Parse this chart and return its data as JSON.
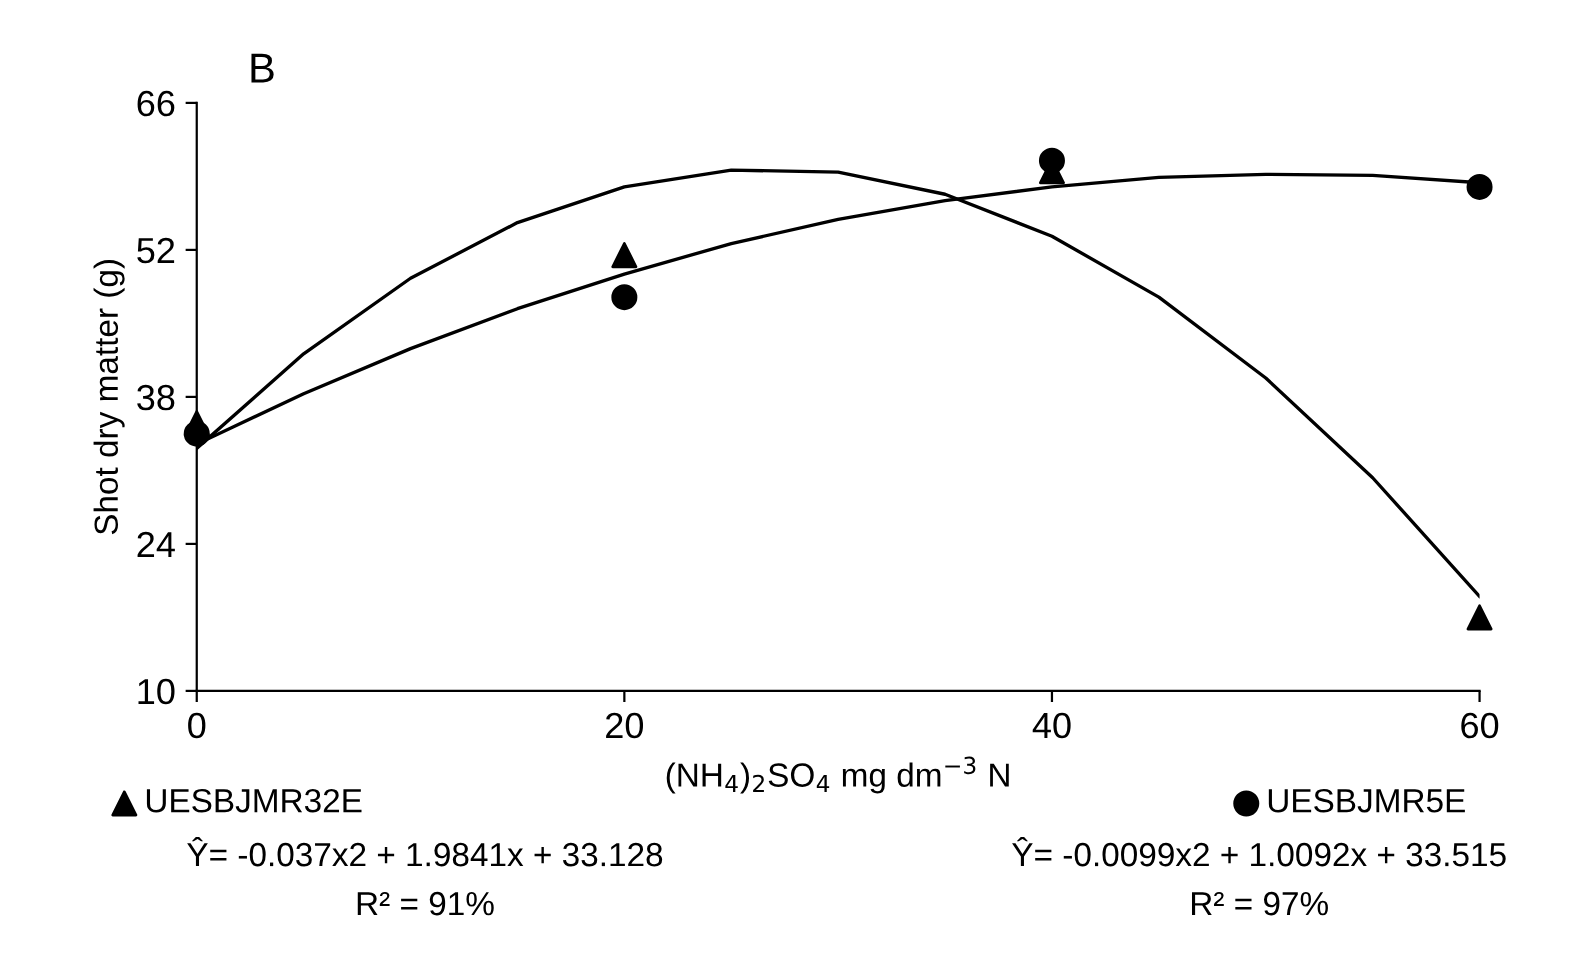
{
  "chart_data": {
    "type": "scatter",
    "title": "B",
    "xlabel": "(NH$_{4}$)$_{2}$SO$_{4}$ mg dm$^{−3}$ N",
    "ylabel": "Shot dry matter (g)",
    "xlim": [
      0,
      60
    ],
    "xticks": [
      0,
      20,
      40,
      60
    ],
    "ylim": [
      10,
      66
    ],
    "yticks": [
      10,
      24,
      38,
      52,
      66
    ],
    "grid": false,
    "legend": "bottom",
    "series": [
      {
        "name": "UESBJMR32E",
        "marker": "triangle",
        "color": "#000000",
        "x": [
          0,
          20,
          40,
          60
        ],
        "values": [
          35.5,
          51.5,
          59.5,
          17
        ]
      },
      {
        "name": "UESBJMR5E",
        "marker": "circle",
        "color": "#000000",
        "x": [
          0,
          20,
          40,
          60
        ],
        "values": [
          34.5,
          47.5,
          60.5,
          58
        ]
      },
      {
        "type": "line",
        "marker": "none",
        "line_style": "solid",
        "color": "#000000",
        "x": [
          0,
          5,
          10,
          15,
          20,
          25,
          30,
          35,
          40,
          45,
          50,
          55,
          60
        ],
        "values": [
          33.1,
          42.1,
          49.3,
          54.6,
          58.0,
          59.6,
          59.4,
          57.3,
          53.3,
          47.5,
          39.8,
          30.3,
          19.0
        ]
      },
      {
        "type": "line",
        "marker": "none",
        "line_style": "solid",
        "color": "#000000",
        "x": [
          0,
          5,
          10,
          15,
          20,
          25,
          30,
          35,
          40,
          45,
          50,
          55,
          60
        ],
        "values": [
          33.5,
          38.3,
          42.6,
          46.4,
          49.7,
          52.6,
          54.9,
          56.7,
          58.0,
          58.9,
          59.2,
          59.1,
          58.4
        ]
      }
    ],
    "annotations": [
      "Ŷ= -0.037x2 + 1.9841x + 33.128",
      "R² = 91%",
      "Ŷ= -0.0099x2 + 1.0092x + 33.515",
      "R² = 97%"
    ]
  }
}
